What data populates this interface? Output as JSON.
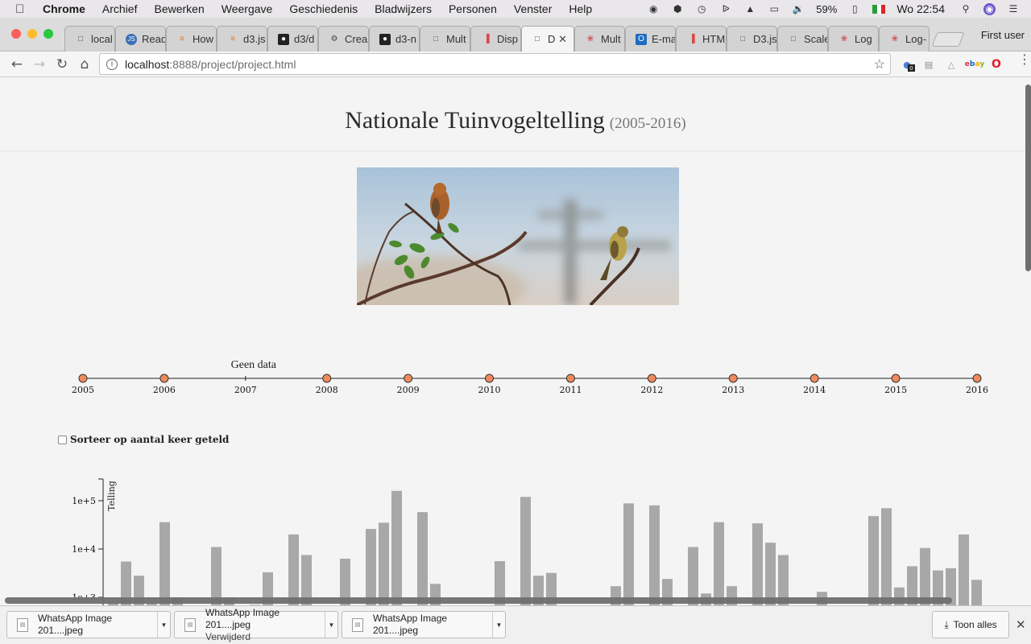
{
  "menubar": {
    "app": "Chrome",
    "items": [
      "Archief",
      "Bewerken",
      "Weergave",
      "Geschiedenis",
      "Bladwijzers",
      "Personen",
      "Venster",
      "Help"
    ],
    "battery": "59%",
    "clock": "Wo 22:54"
  },
  "browser": {
    "tabs": [
      {
        "label": "local",
        "favicon": "page-icon"
      },
      {
        "label": "Read",
        "favicon": "js-icon"
      },
      {
        "label": "How",
        "favicon": "stack-icon"
      },
      {
        "label": "d3.js",
        "favicon": "stack-icon"
      },
      {
        "label": "d3/d",
        "favicon": "github-icon"
      },
      {
        "label": "Crea",
        "favicon": "gear-icon"
      },
      {
        "label": "d3-n",
        "favicon": "github-icon"
      },
      {
        "label": "Mult",
        "favicon": "page-icon"
      },
      {
        "label": "Disp",
        "favicon": "chart-icon"
      },
      {
        "label": "D",
        "favicon": "page-icon",
        "active": true
      },
      {
        "label": "Mult",
        "favicon": "colorful-icon"
      },
      {
        "label": "E-ma",
        "favicon": "outlook-icon"
      },
      {
        "label": "HTM",
        "favicon": "chart-icon"
      },
      {
        "label": "D3.js",
        "favicon": "page-icon"
      },
      {
        "label": "Scale",
        "favicon": "page-icon"
      },
      {
        "label": "Log",
        "favicon": "colorful-icon"
      },
      {
        "label": "Log-",
        "favicon": "colorful-icon"
      }
    ],
    "profile": "First user",
    "url_host": "localhost",
    "url_rest": ":8888/project/project.html",
    "ext_badge": "0"
  },
  "page": {
    "title": "Nationale Tuinvogeltelling",
    "title_range": "(2005-2016)",
    "timeline": {
      "years": [
        "2005",
        "2006",
        "2007",
        "2008",
        "2009",
        "2010",
        "2011",
        "2012",
        "2013",
        "2014",
        "2015",
        "2016"
      ],
      "no_data_year": "2007",
      "no_data_label": "Geen data",
      "dot_color": "#f08a5d"
    },
    "sort_label": "Sorteer op aantal keer geteld"
  },
  "chart_data": {
    "type": "bar",
    "ylabel": "Telling",
    "yscale": "log",
    "ytick_labels": [
      "1e+3",
      "1e+4",
      "1e+5"
    ],
    "ytick_values": [
      1000,
      10000,
      100000
    ],
    "bar_color": "#a8a8a8",
    "values": [
      800,
      5500,
      2800,
      750,
      36000,
      1000,
      0,
      0,
      11000,
      1000,
      0,
      700,
      3300,
      0,
      20000,
      7500,
      0,
      0,
      6300,
      0,
      26000,
      35000,
      160000,
      0,
      58000,
      1900,
      0,
      0,
      0,
      0,
      5600,
      0,
      120000,
      2800,
      3200,
      0,
      0,
      0,
      0,
      1700,
      88000,
      0,
      80000,
      2400,
      0,
      11000,
      1200,
      36000,
      1700,
      0,
      34000,
      13500,
      7500,
      0,
      0,
      1300,
      0,
      0,
      0,
      48000,
      70000,
      1600,
      4400,
      10500,
      3600,
      4000,
      20000,
      2300
    ]
  },
  "downloads": [
    {
      "name": "WhatsApp Image 201....jpeg",
      "status": ""
    },
    {
      "name": "WhatsApp Image 201....jpeg",
      "status": "Verwijderd"
    },
    {
      "name": "WhatsApp Image 201....jpeg",
      "status": ""
    }
  ],
  "show_all": "Toon alles"
}
